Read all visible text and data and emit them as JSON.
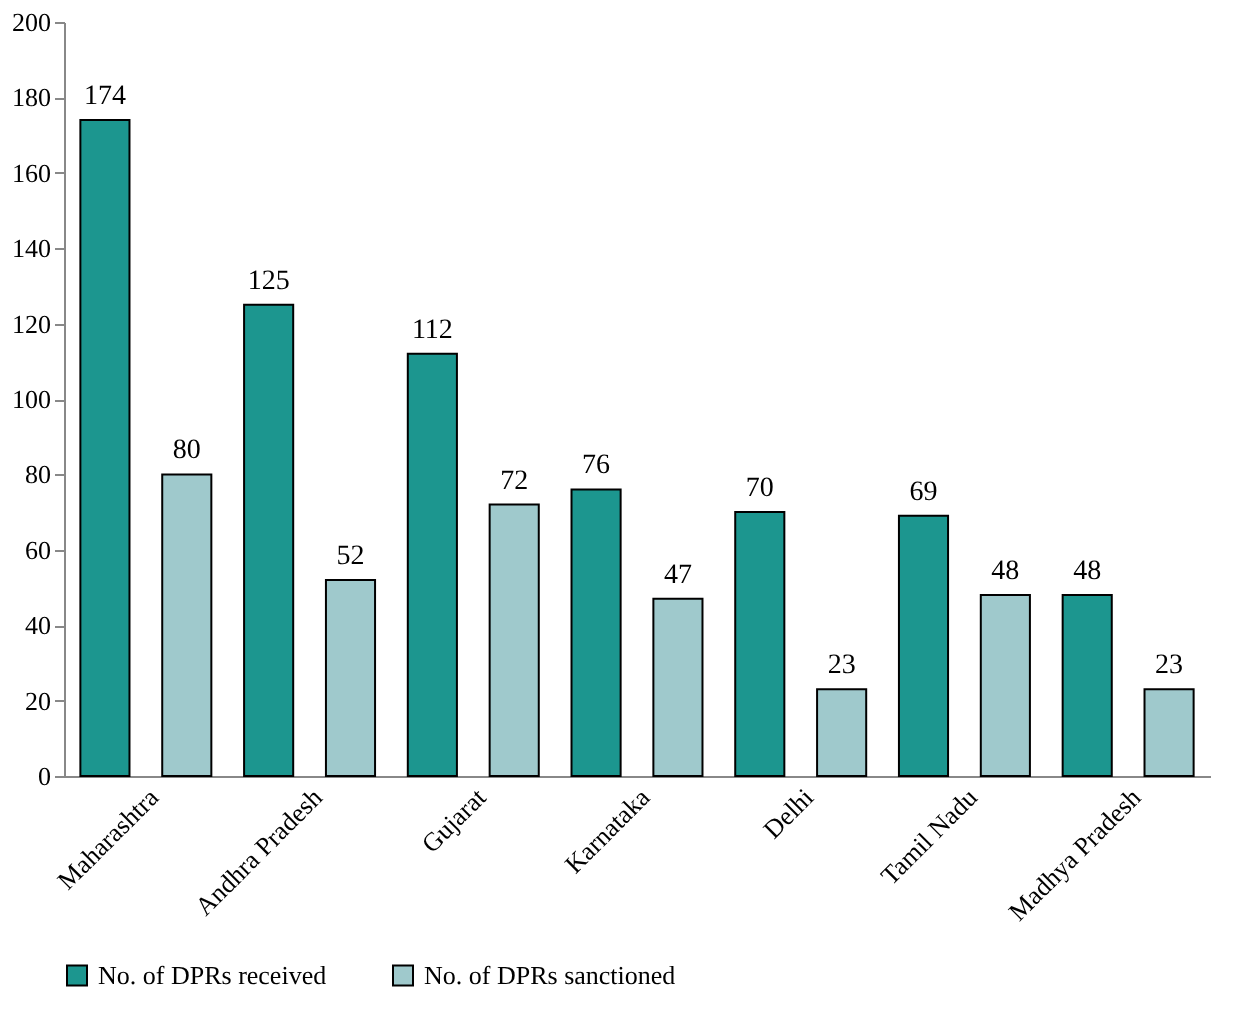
{
  "chart_data": {
    "type": "bar",
    "categories": [
      "Maharashtra",
      "Andhra Pradesh",
      "Gujarat",
      "Karnataka",
      "Delhi",
      "Tamil Nadu",
      "Madhya Pradesh"
    ],
    "series": [
      {
        "name": "No. of DPRs received",
        "color": "#1c968f",
        "values": [
          174,
          125,
          112,
          76,
          70,
          69,
          48
        ]
      },
      {
        "name": "No. of DPRs sanctioned",
        "color": "#9fc9cc",
        "values": [
          80,
          52,
          72,
          47,
          23,
          48,
          23
        ]
      }
    ],
    "ylim": [
      0,
      200
    ],
    "yticks": [
      0,
      20,
      40,
      60,
      80,
      100,
      120,
      140,
      160,
      180,
      200
    ],
    "grid": false,
    "legend": "bottom",
    "data_labels": true
  }
}
